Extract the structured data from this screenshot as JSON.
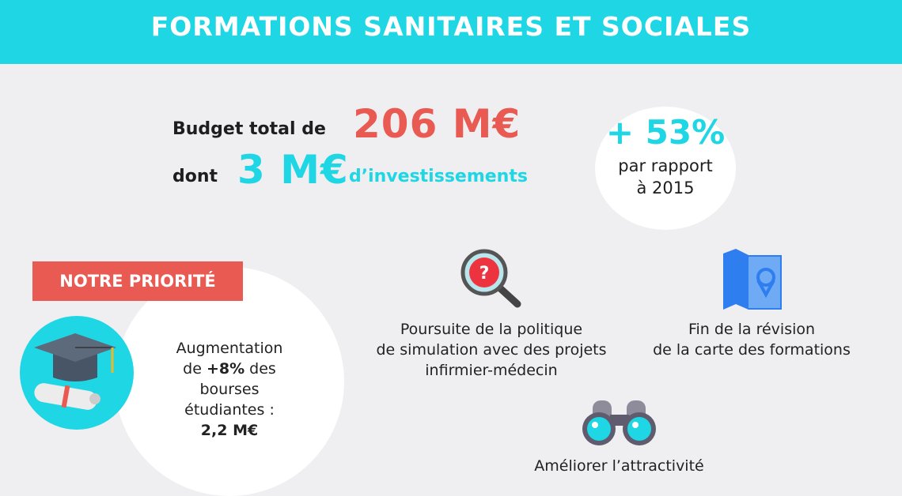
{
  "header": {
    "title": "FORMATIONS SANITAIRES ET SOCIALES"
  },
  "budget": {
    "prefix": "Budget total de",
    "total": "206 M€",
    "dont": "dont",
    "invest": "3 M€",
    "invest_suffix": "d’investissements"
  },
  "growth": {
    "value": "+ 53%",
    "line1": "par rapport",
    "line2": "à 2015"
  },
  "priority": {
    "label": "NOTRE PRIORITÉ",
    "line1": "Augmentation",
    "line2_pre": "de ",
    "line2_bold": "+8%",
    "line2_post": " des",
    "line3": "bourses",
    "line4": "étudiantes :",
    "line5": "2,2 M€"
  },
  "actions": [
    {
      "icon": "magnifier-question-icon",
      "lines": [
        "Poursuite de la politique",
        "de simulation avec des projets",
        "infirmier-médecin"
      ]
    },
    {
      "icon": "map-pin-icon",
      "lines": [
        "Fin de la révision",
        "de la carte des formations"
      ]
    },
    {
      "icon": "binoculars-icon",
      "lines": [
        "Améliorer l’attractivité"
      ]
    }
  ],
  "colors": {
    "cyan": "#1fd6e4",
    "red": "#e85a52",
    "background": "#efeef1"
  }
}
